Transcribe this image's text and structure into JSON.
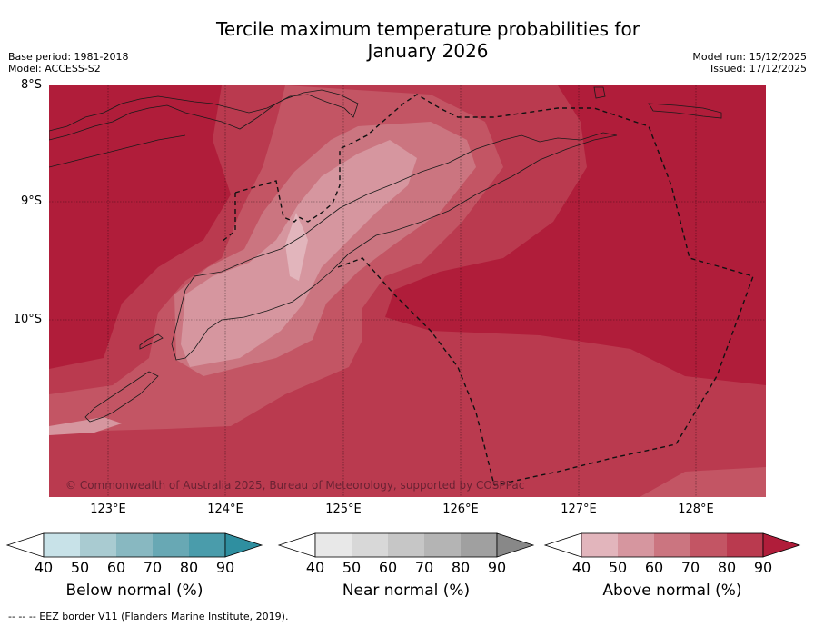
{
  "title_line1": "Tercile maximum temperature probabilities for",
  "title_line2": "January 2026",
  "meta": {
    "base_period": "Base period: 1981-2018",
    "model": "Model: ACCESS-S2",
    "model_run": "Model run: 15/12/2025",
    "issued": "Issued: 17/12/2025"
  },
  "latitudes": [
    "8°S",
    "9°S",
    "10°S"
  ],
  "longitudes": [
    "123°E",
    "124°E",
    "125°E",
    "126°E",
    "127°E",
    "128°E"
  ],
  "copyright": "© Commonwealth of Australia 2025, Bureau of Meteorology, supported by COSPPac",
  "colorbars": [
    {
      "label": "Below normal (%)",
      "ticks": [
        "40",
        "50",
        "60",
        "70",
        "80",
        "90"
      ],
      "colors": [
        "#c8e2e8",
        "#a9cbd1",
        "#88b8c1",
        "#68a8b4",
        "#4a9cab",
        "#2f8fa0"
      ]
    },
    {
      "label": "Near normal (%)",
      "ticks": [
        "40",
        "50",
        "60",
        "70",
        "80",
        "90"
      ],
      "colors": [
        "#e8e8e8",
        "#d8d8d8",
        "#c6c6c6",
        "#b4b4b4",
        "#a0a0a0",
        "#888888"
      ]
    },
    {
      "label": "Above normal (%)",
      "ticks": [
        "40",
        "50",
        "60",
        "70",
        "80",
        "90"
      ],
      "colors": [
        "#e2b5bc",
        "#d6969f",
        "#cb7580",
        "#c35564",
        "#ba3a4f",
        "#b01d3a"
      ]
    }
  ],
  "footer": "-- -- -- EEZ border V11 (Flanders Marine Institute, 2019)."
}
